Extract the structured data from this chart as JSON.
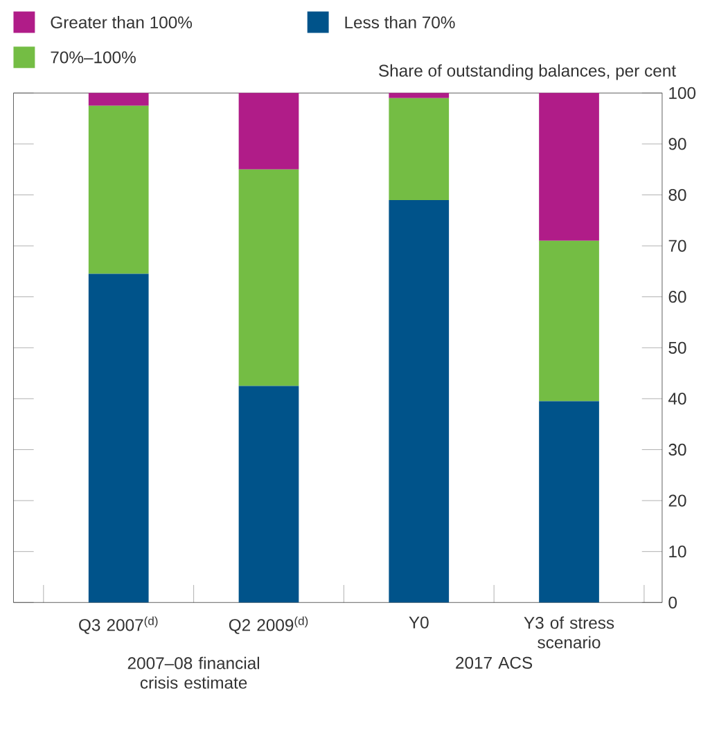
{
  "chart_data": {
    "type": "bar",
    "stacked": true,
    "ylabel": "Share of outstanding balances, per cent",
    "categories": [
      "Q3 2007$^{(d)}$",
      "Q2 2009$^{(d)}$",
      "Y0",
      "Y3 of stress scenario"
    ],
    "series": [
      {
        "name": "Less than 70%",
        "color": "#00538a",
        "values": [
          64.5,
          42.5,
          79,
          39.5
        ]
      },
      {
        "name": "70%–100%",
        "color": "#74bd44",
        "values": [
          33,
          42.5,
          20,
          31.5
        ]
      },
      {
        "name": "Greater than 100%",
        "color": "#b01c88",
        "values": [
          2.5,
          15,
          1,
          29
        ]
      }
    ],
    "ylim": [
      0,
      100
    ],
    "yticks": [
      0,
      10,
      20,
      30,
      40,
      50,
      60,
      70,
      80,
      90,
      100
    ],
    "legend": "top left",
    "annotations": [
      "2007–08 financial crisis estimate",
      "2017 ACS"
    ]
  }
}
